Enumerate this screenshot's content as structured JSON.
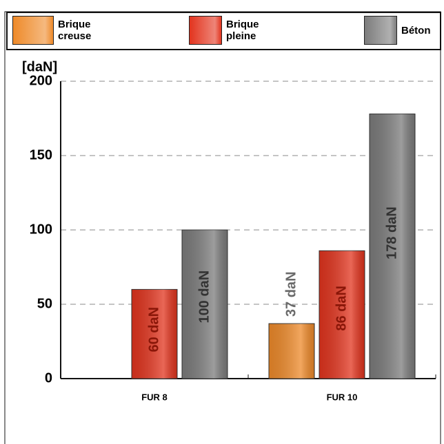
{
  "chart_data": {
    "type": "bar",
    "y_label": "[daN]",
    "categories": [
      "FUR 8",
      "FUR 10"
    ],
    "series": [
      {
        "name": "Brique creuse",
        "color": "#ee8a2a",
        "values": [
          null,
          37
        ],
        "value_labels": [
          null,
          "37 daN"
        ]
      },
      {
        "name": "Brique pleine",
        "color": "#e2341e",
        "values": [
          60,
          86
        ],
        "value_labels": [
          "60 daN",
          "86 daN"
        ]
      },
      {
        "name": "Béton",
        "color": "#7c7c7c",
        "values": [
          100,
          178
        ],
        "value_labels": [
          "100 daN",
          "178 daN"
        ]
      }
    ],
    "ylim": [
      0,
      200
    ],
    "yticks": [
      0,
      50,
      100,
      150,
      200
    ],
    "grid": true
  }
}
